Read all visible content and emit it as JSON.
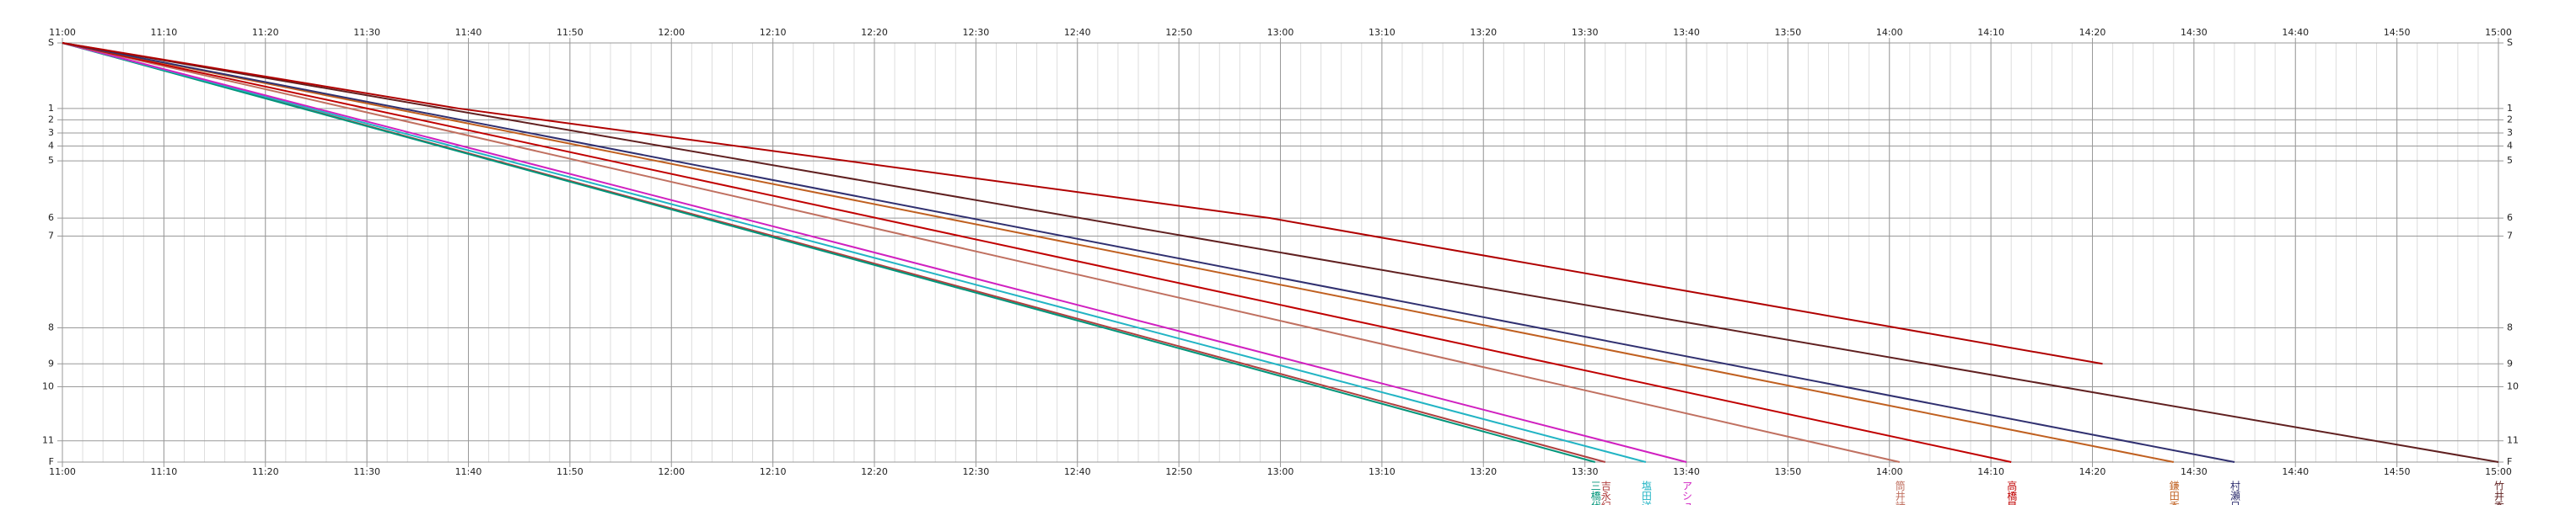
{
  "chart_data": {
    "type": "line",
    "xlim": [
      "11:00",
      "15:00"
    ],
    "xticks": [
      "11:00",
      "11:10",
      "11:20",
      "11:30",
      "11:40",
      "11:50",
      "12:00",
      "12:10",
      "12:20",
      "12:30",
      "12:40",
      "12:50",
      "13:00",
      "13:10",
      "13:20",
      "13:30",
      "13:40",
      "13:50",
      "14:00",
      "14:10",
      "14:20",
      "14:30",
      "14:40",
      "14:50",
      "15:00"
    ],
    "categories": [
      "S",
      "1",
      "2",
      "3",
      "4",
      "5",
      "6",
      "7",
      "8",
      "9",
      "10",
      "11",
      "F"
    ],
    "distance": [
      0,
      40,
      47,
      55,
      63,
      72,
      107,
      118,
      174,
      196,
      210,
      243,
      256
    ],
    "ylim": [
      0,
      256
    ],
    "grid": true,
    "series": [
      {
        "name": "吉永紀",
        "color": "#b04040",
        "x": [
          "11:00",
          "13:32"
        ],
        "values": [
          0,
          256
        ]
      },
      {
        "name": "三橋代",
        "color": "#00957a",
        "x": [
          "11:00",
          "13:31"
        ],
        "values": [
          0,
          256
        ]
      },
      {
        "name": "塩田洋",
        "color": "#22b4c4",
        "x": [
          "11:00",
          "13:36"
        ],
        "values": [
          0,
          256
        ]
      },
      {
        "name": "アシュ",
        "color": "#d020c0",
        "x": [
          "11:00",
          "13:40"
        ],
        "values": [
          0,
          256
        ]
      },
      {
        "name": "筒井詩",
        "color": "#c07060",
        "x": [
          "11:00",
          "14:01"
        ],
        "values": [
          0,
          256
        ]
      },
      {
        "name": "高橋昇",
        "color": "#c00000",
        "x": [
          "11:00",
          "14:12"
        ],
        "values": [
          0,
          256
        ]
      },
      {
        "name": "鎌田香",
        "color": "#c06020",
        "x": [
          "11:00",
          "14:28"
        ],
        "values": [
          0,
          256
        ]
      },
      {
        "name": "村瀬日",
        "color": "#303070",
        "x": [
          "11:00",
          "14:34"
        ],
        "values": [
          0,
          256
        ]
      },
      {
        "name": "竹井秀",
        "color": "#602020",
        "x": [
          "11:00",
          "15:00"
        ],
        "values": [
          0,
          256
        ]
      },
      {
        "color": "#b00000",
        "x": [
          "11:00",
          "11:39",
          "12:59",
          "14:21"
        ],
        "values": [
          0,
          40,
          107,
          196
        ]
      }
    ]
  }
}
